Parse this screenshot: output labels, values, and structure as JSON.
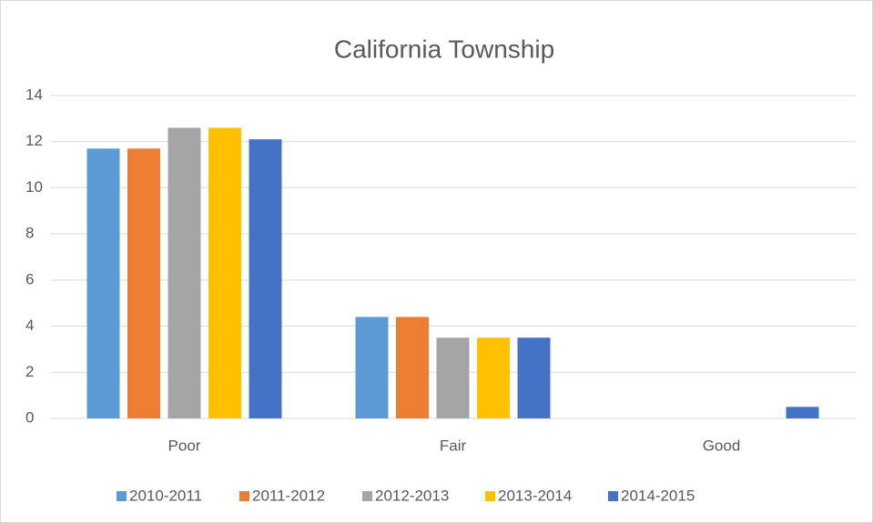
{
  "chart_data": {
    "type": "bar",
    "title": "California Township",
    "categories": [
      "Poor",
      "Fair",
      "Good"
    ],
    "series": [
      {
        "name": "2010-2011",
        "color": "#5b9bd5",
        "values": [
          11.7,
          4.4,
          0
        ]
      },
      {
        "name": "2011-2012",
        "color": "#ed7d31",
        "values": [
          11.7,
          4.4,
          0
        ]
      },
      {
        "name": "2012-2013",
        "color": "#a5a5a5",
        "values": [
          12.6,
          3.5,
          0
        ]
      },
      {
        "name": "2013-2014",
        "color": "#ffc000",
        "values": [
          12.6,
          3.5,
          0
        ]
      },
      {
        "name": "2014-2015",
        "color": "#4472c4",
        "values": [
          12.1,
          3.5,
          0.5
        ]
      }
    ],
    "ylim": [
      0,
      14
    ],
    "yticks": [
      0,
      2,
      4,
      6,
      8,
      10,
      12,
      14
    ],
    "grid": true,
    "legend": "bottom"
  }
}
